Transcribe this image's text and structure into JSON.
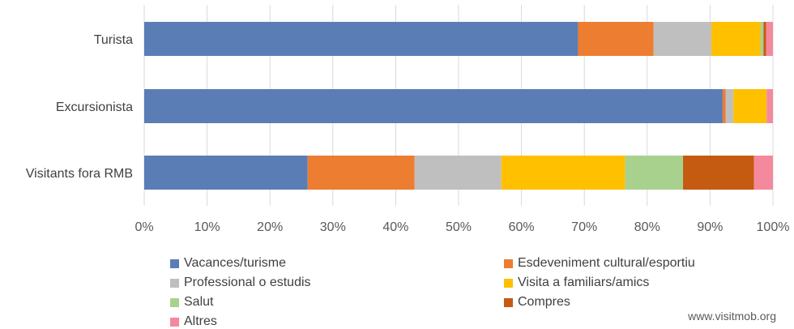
{
  "chart_data": {
    "type": "bar",
    "orientation": "horizontal",
    "stacked": "percent",
    "categories": [
      "Turista",
      "Excursionista",
      "Visitants fora RMB"
    ],
    "xlim": [
      0,
      100
    ],
    "xticks": [
      "0%",
      "10%",
      "20%",
      "30%",
      "40%",
      "50%",
      "60%",
      "70%",
      "80%",
      "90%",
      "100%"
    ],
    "grid": true,
    "legend_position": "bottom",
    "series": [
      {
        "name": "Vacances/turisme",
        "color": "#5b7db5",
        "values": [
          69.0,
          92.0,
          26.0
        ]
      },
      {
        "name": "Esdeveniment cultural/esportiu",
        "color": "#ed7d31",
        "values": [
          12.0,
          0.5,
          17.0
        ]
      },
      {
        "name": "Professional o estudis",
        "color": "#bfbfbf",
        "values": [
          9.2,
          1.2,
          13.8
        ]
      },
      {
        "name": "Visita a familiars/amics",
        "color": "#ffc000",
        "values": [
          7.8,
          5.3,
          19.7
        ]
      },
      {
        "name": "Salut",
        "color": "#a9d18e",
        "values": [
          0.5,
          0.0,
          9.2
        ]
      },
      {
        "name": "Compres",
        "color": "#c55a11",
        "values": [
          0.4,
          0.0,
          11.3
        ]
      },
      {
        "name": "Altres",
        "color": "#f4899e",
        "values": [
          1.1,
          1.0,
          3.0
        ]
      }
    ]
  },
  "watermark": "www.visitmob.org"
}
